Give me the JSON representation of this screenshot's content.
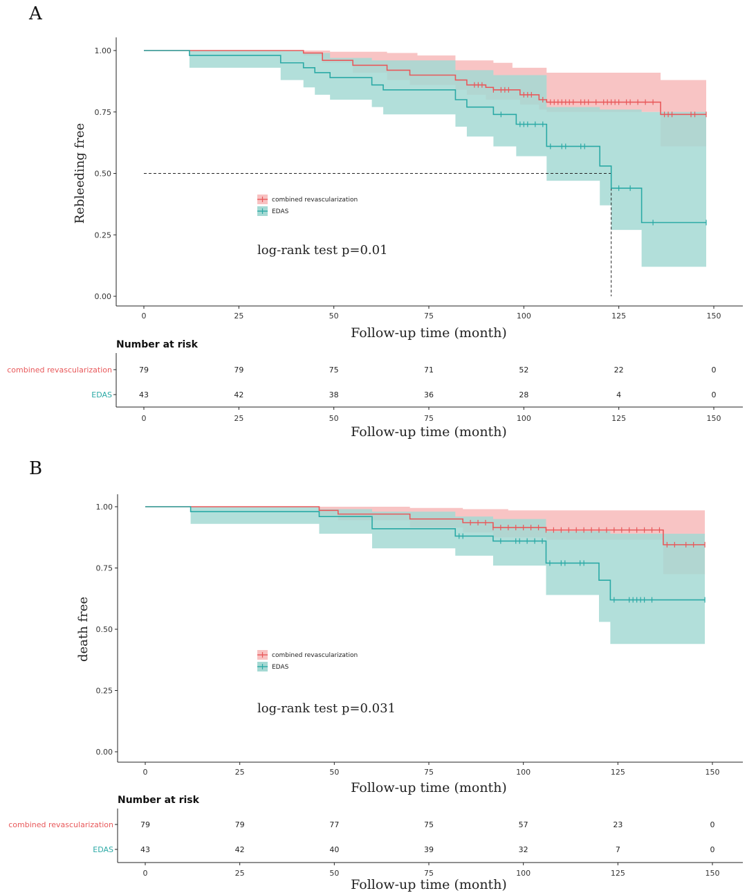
{
  "colors": {
    "combined": "#e8585a",
    "combined_band": "#f8c1c1",
    "edas": "#2aa9a5",
    "edas_band": "#a4d9d3",
    "overlap": "#a9b0ab"
  },
  "panels": [
    {
      "letter": "A",
      "chart_data": {
        "type": "line",
        "subtype": "kaplan-meier",
        "title": "",
        "xlabel": "Follow-up time (month)",
        "ylabel": "Rebleeding free",
        "xlim": [
          0,
          150
        ],
        "ylim": [
          0,
          1
        ],
        "x_ticks": [
          "0",
          "25",
          "50",
          "75",
          "100",
          "125",
          "150"
        ],
        "y_ticks": [
          "0.00",
          "0.25",
          "0.50",
          "0.75",
          "1.00"
        ],
        "grid": false,
        "legend_position": "center-left",
        "median_reference": {
          "y": 0.5,
          "x": 123
        },
        "annotation": "log-rank test p=0.01",
        "series": [
          {
            "name": "combined revascularization",
            "color_key": "combined",
            "steps": [
              [
                0,
                1.0
              ],
              [
                42,
                0.99
              ],
              [
                47,
                0.96
              ],
              [
                55,
                0.94
              ],
              [
                64,
                0.92
              ],
              [
                70,
                0.9
              ],
              [
                82,
                0.88
              ],
              [
                85,
                0.86
              ],
              [
                90,
                0.85
              ],
              [
                92,
                0.84
              ],
              [
                99,
                0.82
              ],
              [
                104,
                0.8
              ],
              [
                106,
                0.79
              ],
              [
                136,
                0.74
              ],
              [
                148,
                0.74
              ]
            ],
            "upper": [
              [
                0,
                1.0
              ],
              [
                42,
                1.0
              ],
              [
                49,
                0.995
              ],
              [
                64,
                0.99
              ],
              [
                72,
                0.98
              ],
              [
                82,
                0.96
              ],
              [
                92,
                0.95
              ],
              [
                97,
                0.93
              ],
              [
                106,
                0.91
              ],
              [
                136,
                0.88
              ],
              [
                148,
                0.88
              ]
            ],
            "lower": [
              [
                0,
                1.0
              ],
              [
                42,
                0.98
              ],
              [
                47,
                0.95
              ],
              [
                55,
                0.91
              ],
              [
                64,
                0.88
              ],
              [
                70,
                0.86
              ],
              [
                82,
                0.84
              ],
              [
                85,
                0.82
              ],
              [
                90,
                0.8
              ],
              [
                99,
                0.78
              ],
              [
                104,
                0.76
              ],
              [
                106,
                0.75
              ],
              [
                136,
                0.61
              ],
              [
                148,
                0.61
              ]
            ],
            "censor": [
              87,
              88,
              89,
              92,
              94,
              95,
              96,
              100,
              101,
              102,
              105,
              107,
              108,
              109,
              110,
              111,
              112,
              113,
              115,
              116,
              117,
              119,
              121,
              122,
              123,
              124,
              125,
              127,
              128,
              130,
              132,
              134,
              137,
              138,
              139,
              144,
              145,
              148
            ]
          },
          {
            "name": "EDAS",
            "color_key": "edas",
            "steps": [
              [
                0,
                1.0
              ],
              [
                12,
                0.98
              ],
              [
                36,
                0.95
              ],
              [
                42,
                0.93
              ],
              [
                45,
                0.91
              ],
              [
                49,
                0.89
              ],
              [
                60,
                0.86
              ],
              [
                63,
                0.84
              ],
              [
                82,
                0.8
              ],
              [
                85,
                0.77
              ],
              [
                92,
                0.74
              ],
              [
                98,
                0.7
              ],
              [
                106,
                0.61
              ],
              [
                120,
                0.53
              ],
              [
                123,
                0.44
              ],
              [
                131,
                0.3
              ],
              [
                148,
                0.3
              ]
            ],
            "upper": [
              [
                0,
                1.0
              ],
              [
                12,
                1.0
              ],
              [
                42,
                0.99
              ],
              [
                49,
                0.97
              ],
              [
                60,
                0.96
              ],
              [
                82,
                0.92
              ],
              [
                92,
                0.9
              ],
              [
                106,
                0.77
              ],
              [
                120,
                0.76
              ],
              [
                131,
                0.75
              ],
              [
                148,
                0.75
              ]
            ],
            "lower": [
              [
                0,
                1.0
              ],
              [
                12,
                0.93
              ],
              [
                36,
                0.88
              ],
              [
                42,
                0.85
              ],
              [
                45,
                0.82
              ],
              [
                49,
                0.8
              ],
              [
                60,
                0.77
              ],
              [
                63,
                0.74
              ],
              [
                82,
                0.69
              ],
              [
                85,
                0.65
              ],
              [
                92,
                0.61
              ],
              [
                98,
                0.57
              ],
              [
                106,
                0.47
              ],
              [
                120,
                0.37
              ],
              [
                123,
                0.27
              ],
              [
                131,
                0.12
              ],
              [
                148,
                0.12
              ]
            ]
          }
        ],
        "edas_censor": [
          94,
          99,
          100,
          101,
          103,
          105,
          107,
          110,
          111,
          115,
          116,
          125,
          128,
          134,
          148
        ],
        "risk_table": {
          "title": "Number at risk",
          "xlabel": "Follow-up time (month)",
          "times": [
            "0",
            "25",
            "50",
            "75",
            "100",
            "125",
            "150"
          ],
          "rows": [
            {
              "label": "combined revascularization",
              "color_key": "combined",
              "values": [
                "79",
                "79",
                "75",
                "71",
                "52",
                "22",
                "0"
              ]
            },
            {
              "label": "EDAS",
              "color_key": "edas",
              "values": [
                "43",
                "42",
                "38",
                "36",
                "28",
                "4",
                "0"
              ]
            }
          ]
        }
      }
    },
    {
      "letter": "B",
      "chart_data": {
        "type": "line",
        "subtype": "kaplan-meier",
        "title": "",
        "xlabel": "Follow-up time (month)",
        "ylabel": "death free",
        "xlim": [
          0,
          150
        ],
        "ylim": [
          0,
          1
        ],
        "x_ticks": [
          "0",
          "25",
          "50",
          "75",
          "100",
          "125",
          "150"
        ],
        "y_ticks": [
          "0.00",
          "0.25",
          "0.50",
          "0.75",
          "1.00"
        ],
        "grid": false,
        "legend_position": "center-left",
        "annotation": "log-rank test p=0.031",
        "series": [
          {
            "name": "combined revascularization",
            "color_key": "combined",
            "steps": [
              [
                0,
                1.0
              ],
              [
                46,
                0.985
              ],
              [
                51,
                0.97
              ],
              [
                70,
                0.95
              ],
              [
                84,
                0.935
              ],
              [
                92,
                0.915
              ],
              [
                106,
                0.905
              ],
              [
                137,
                0.845
              ],
              [
                148,
                0.845
              ]
            ],
            "upper": [
              [
                0,
                1.0
              ],
              [
                46,
                1.0
              ],
              [
                70,
                0.995
              ],
              [
                84,
                0.99
              ],
              [
                96,
                0.985
              ],
              [
                137,
                0.985
              ],
              [
                148,
                0.985
              ]
            ],
            "lower": [
              [
                0,
                1.0
              ],
              [
                46,
                0.965
              ],
              [
                51,
                0.945
              ],
              [
                70,
                0.915
              ],
              [
                84,
                0.895
              ],
              [
                92,
                0.875
              ],
              [
                106,
                0.865
              ],
              [
                137,
                0.725
              ],
              [
                148,
                0.725
              ]
            ],
            "censor": [
              86,
              88,
              90,
              92,
              94,
              96,
              98,
              100,
              102,
              104,
              106,
              108,
              110,
              112,
              114,
              116,
              118,
              120,
              122,
              124,
              126,
              128,
              130,
              132,
              134,
              136,
              138,
              140,
              143,
              145,
              148
            ]
          },
          {
            "name": "EDAS",
            "color_key": "edas",
            "steps": [
              [
                0,
                1.0
              ],
              [
                12,
                0.98
              ],
              [
                46,
                0.96
              ],
              [
                60,
                0.91
              ],
              [
                82,
                0.88
              ],
              [
                92,
                0.86
              ],
              [
                106,
                0.77
              ],
              [
                120,
                0.7
              ],
              [
                123,
                0.62
              ],
              [
                148,
                0.62
              ]
            ],
            "upper": [
              [
                0,
                1.0
              ],
              [
                12,
                1.0
              ],
              [
                46,
                0.99
              ],
              [
                60,
                0.98
              ],
              [
                82,
                0.96
              ],
              [
                92,
                0.95
              ],
              [
                106,
                0.9
              ],
              [
                123,
                0.89
              ],
              [
                148,
                0.89
              ]
            ],
            "lower": [
              [
                0,
                1.0
              ],
              [
                12,
                0.93
              ],
              [
                46,
                0.89
              ],
              [
                60,
                0.83
              ],
              [
                82,
                0.8
              ],
              [
                92,
                0.76
              ],
              [
                106,
                0.64
              ],
              [
                120,
                0.53
              ],
              [
                123,
                0.44
              ],
              [
                148,
                0.44
              ]
            ]
          }
        ],
        "edas_censor": [
          83,
          84,
          94,
          98,
          99,
          101,
          103,
          105,
          107,
          110,
          111,
          115,
          116,
          124,
          128,
          129,
          130,
          131,
          132,
          134,
          148
        ],
        "risk_table": {
          "title": "Number at risk",
          "xlabel": "Follow-up time (month)",
          "times": [
            "0",
            "25",
            "50",
            "75",
            "100",
            "125",
            "150"
          ],
          "rows": [
            {
              "label": "combined revascularization",
              "color_key": "combined",
              "values": [
                "79",
                "79",
                "77",
                "75",
                "57",
                "23",
                "0"
              ]
            },
            {
              "label": "EDAS",
              "color_key": "edas",
              "values": [
                "43",
                "42",
                "40",
                "39",
                "32",
                "7",
                "0"
              ]
            }
          ]
        }
      }
    }
  ]
}
